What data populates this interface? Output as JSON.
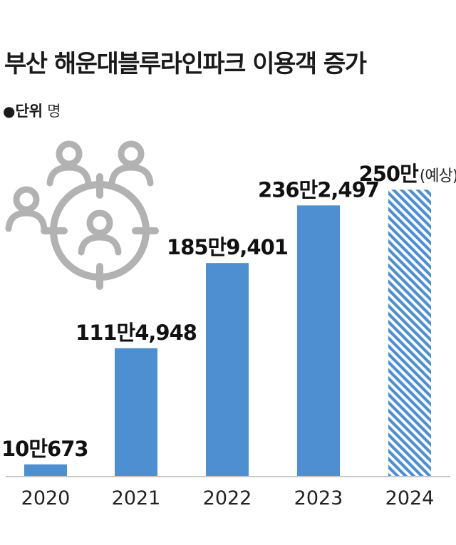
{
  "title": "부산 해운대블루라인파크 이용객 증가",
  "unit": {
    "bullet": "●",
    "label": "단위",
    "value": "명"
  },
  "colors": {
    "bar": "#4d8fd1",
    "projected": "#4d8fd1",
    "axis": "#b5b5b5",
    "icon": "#b2b2b2"
  },
  "icon": "people-target-icon",
  "chart_data": {
    "type": "bar",
    "categories": [
      "2020",
      "2021",
      "2022",
      "2023",
      "2024"
    ],
    "values": [
      100673,
      1114948,
      1859401,
      2362497,
      2500000
    ],
    "labels": [
      "10만673",
      "111만4,948",
      "185만9,401",
      "236만2,497",
      "250만"
    ],
    "notes": [
      "",
      "",
      "",
      "",
      "(예상)"
    ],
    "projected": [
      false,
      false,
      false,
      false,
      true
    ],
    "ylim": [
      0,
      2800000
    ],
    "grid": false,
    "legend": "none"
  }
}
